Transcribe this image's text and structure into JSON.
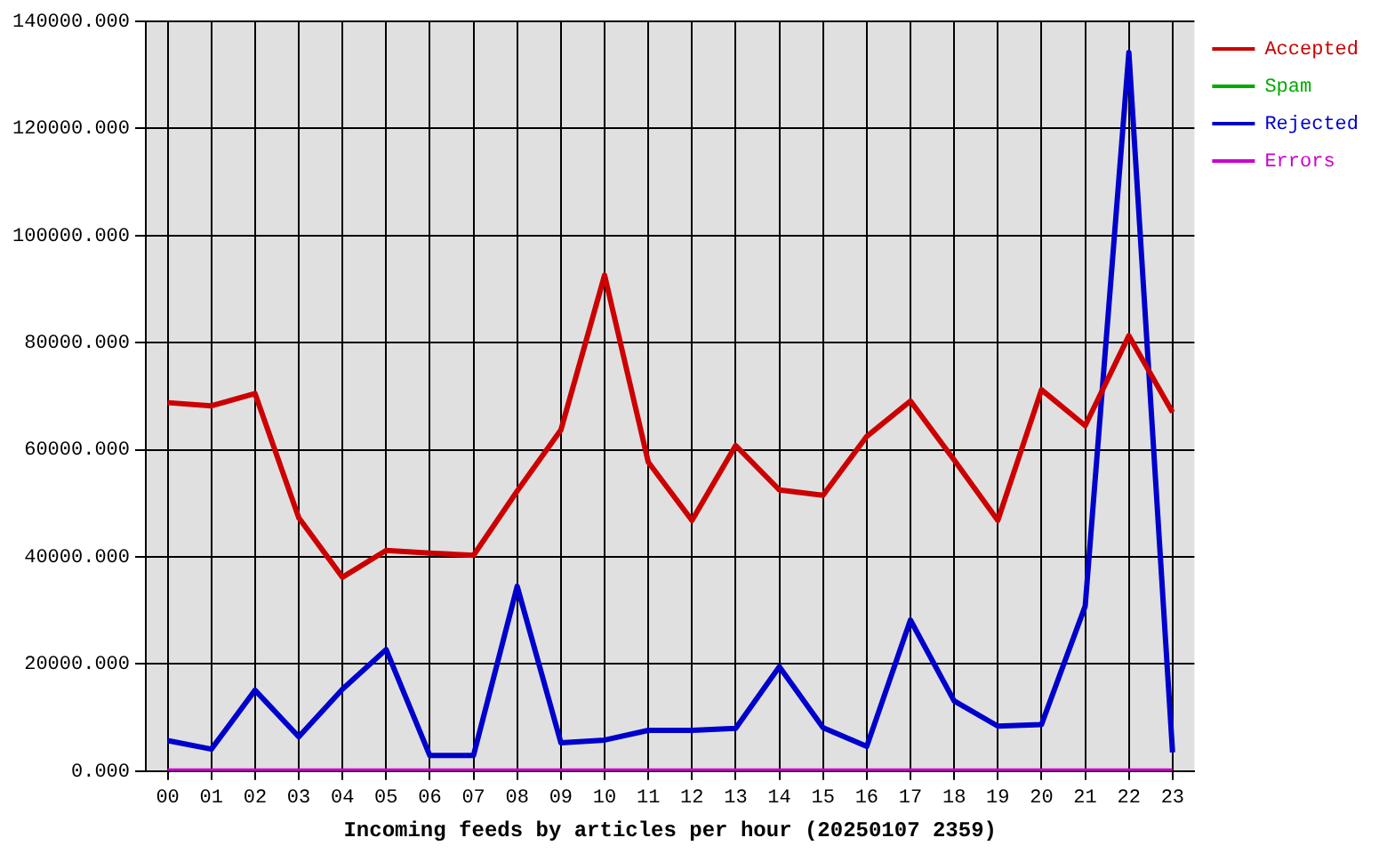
{
  "chart_data": {
    "type": "line",
    "xlabel": "Incoming feeds by articles per hour (20250107 2359)",
    "categories": [
      "00",
      "01",
      "02",
      "03",
      "04",
      "05",
      "06",
      "07",
      "08",
      "09",
      "10",
      "11",
      "12",
      "13",
      "14",
      "15",
      "16",
      "17",
      "18",
      "19",
      "20",
      "21",
      "22",
      "23"
    ],
    "series": [
      {
        "name": "Accepted",
        "color": "#cc0000",
        "values": [
          68800,
          68200,
          70500,
          47300,
          36200,
          41200,
          40700,
          40300,
          52300,
          63700,
          92600,
          57700,
          46800,
          60800,
          52500,
          51500,
          62500,
          69100,
          58100,
          46800,
          71200,
          64500,
          81300,
          67000
        ]
      },
      {
        "name": "Spam",
        "color": "#00aa00",
        "values": [
          null,
          null,
          null,
          null,
          null,
          null,
          null,
          null,
          null,
          null,
          null,
          null,
          null,
          null,
          null,
          null,
          null,
          null,
          null,
          null,
          null,
          null,
          null,
          null
        ]
      },
      {
        "name": "Rejected",
        "color": "#0000cc",
        "values": [
          5700,
          4100,
          15100,
          6400,
          15300,
          22700,
          2900,
          2900,
          34500,
          5300,
          5800,
          7600,
          7600,
          8000,
          19500,
          8100,
          4600,
          28200,
          13100,
          8400,
          8700,
          30800,
          134200,
          3500
        ]
      },
      {
        "name": "Errors",
        "color": "#cc00cc",
        "values": [
          0,
          0,
          0,
          0,
          0,
          0,
          0,
          0,
          0,
          0,
          0,
          0,
          0,
          0,
          0,
          0,
          0,
          0,
          0,
          0,
          0,
          0,
          0,
          0
        ]
      }
    ],
    "ylim": [
      0,
      140000
    ],
    "yticks": [
      {
        "value": 0,
        "label": "0.000"
      },
      {
        "value": 20000,
        "label": "20000.000"
      },
      {
        "value": 40000,
        "label": "40000.000"
      },
      {
        "value": 60000,
        "label": "60000.000"
      },
      {
        "value": 80000,
        "label": "80000.000"
      },
      {
        "value": 100000,
        "label": "100000.000"
      },
      {
        "value": 120000,
        "label": "120000.000"
      },
      {
        "value": 140000,
        "label": "140000.000"
      }
    ],
    "grid": true,
    "legend": "right",
    "marker": "none",
    "line_style": "solid"
  }
}
